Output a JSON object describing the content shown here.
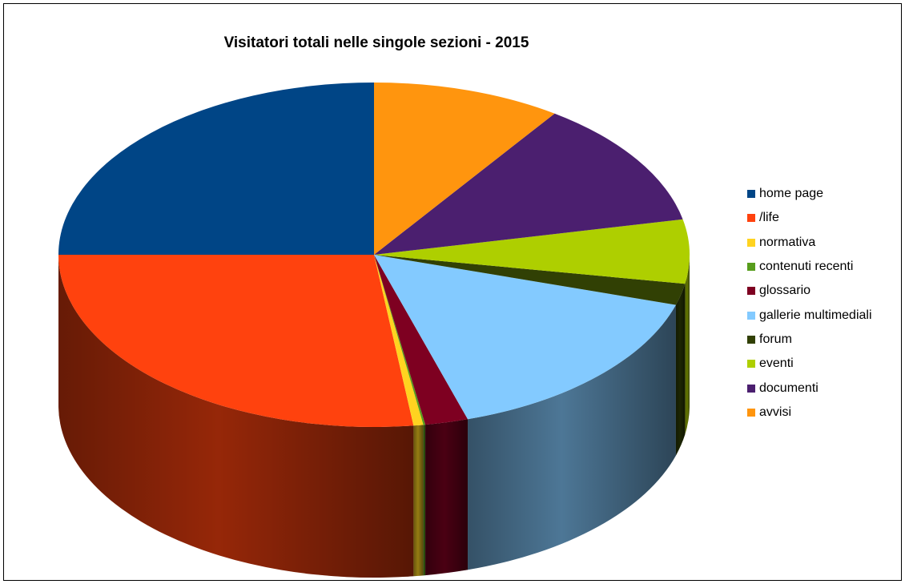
{
  "chart_data": {
    "type": "pie",
    "title": "Visitatori totali nelle singole sezioni - 2015",
    "three_d": true,
    "legend_position": "right",
    "slices": [
      {
        "label": "home page",
        "value": 25.0,
        "color": "#004586"
      },
      {
        "label": "/life",
        "value": 27.0,
        "color": "#ff420e"
      },
      {
        "label": "normativa",
        "value": 0.5,
        "color": "#ffd320"
      },
      {
        "label": "contenuti recenti",
        "value": 0.1,
        "color": "#579d1c"
      },
      {
        "label": "glossario",
        "value": 2.2,
        "color": "#7e0021"
      },
      {
        "label": "gallerie multimediali",
        "value": 15.5,
        "color": "#83caff"
      },
      {
        "label": "forum",
        "value": 2.0,
        "color": "#314004"
      },
      {
        "label": "eventi",
        "value": 6.0,
        "color": "#aecf00"
      },
      {
        "label": "documenti",
        "value": 12.0,
        "color": "#4b1f6f"
      },
      {
        "label": "avvisi",
        "value": 9.7,
        "color": "#ff950e"
      }
    ]
  }
}
